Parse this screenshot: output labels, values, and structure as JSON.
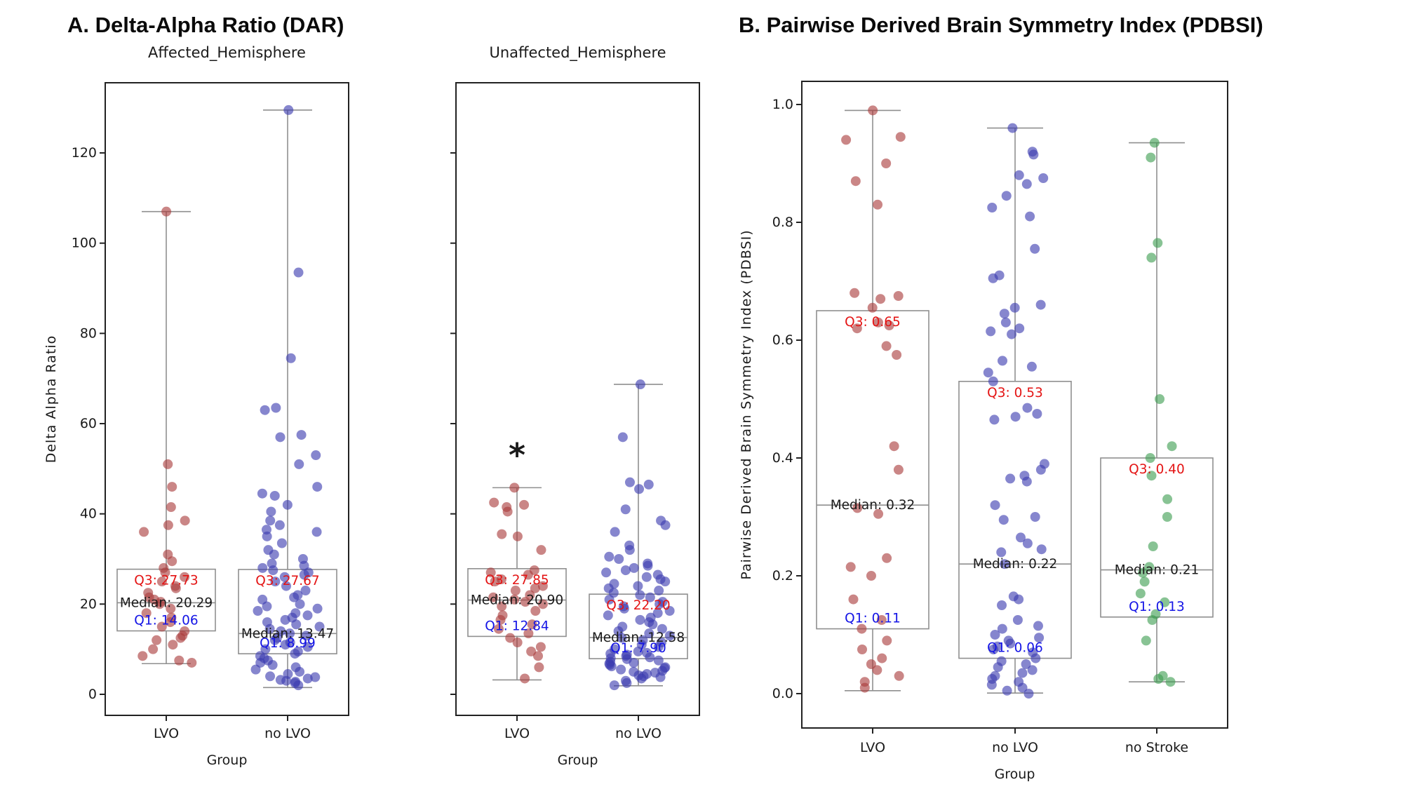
{
  "page": {
    "panel_a_title": "A. Delta-Alpha Ratio (DAR)",
    "panel_b_title": "B. Pairwise Derived Brain Symmetry Index (PDBSI)"
  },
  "colors": {
    "point_red": "#a93c3c",
    "point_blue": "#3b3bb0",
    "point_green": "#3f9e53",
    "box_stroke": "#8f8f8f",
    "annotation_q3": "#e41414",
    "annotation_median": "#1a1a1a",
    "annotation_q1": "#1414e6",
    "axis": "#222222"
  },
  "chart_data": [
    {
      "type": "box",
      "title": "Affected_Hemisphere",
      "xlabel": "Group",
      "ylabel": "Delta  Alpha Ratio",
      "ylim": [
        -4.7,
        135.5
      ],
      "yticks": [
        0,
        20,
        40,
        60,
        80,
        100,
        120
      ],
      "yticklabels": [
        "0",
        "20",
        "40",
        "60",
        "80",
        "100",
        "120"
      ],
      "show_ytick_labels": true,
      "categories": [
        "LVO",
        "no LVO"
      ],
      "groups": [
        {
          "name": "LVO",
          "color_key": "point_red",
          "box": {
            "q1": 14.06,
            "median": 20.29,
            "q3": 27.73,
            "whisker_low": 6.8,
            "whisker_high": 107.0
          },
          "labels": {
            "q3": "Q3: 27.73",
            "median": "Median: 20.29",
            "q1": "Q1: 14.06"
          },
          "points": [
            107,
            51,
            46,
            41.5,
            38.5,
            37.5,
            36,
            31,
            29.5,
            28,
            27,
            26,
            25,
            24,
            23.5,
            22.5,
            21.5,
            21,
            20.5,
            20,
            19,
            18,
            17,
            16,
            15,
            14,
            13,
            12.5,
            12,
            11,
            10,
            8.5,
            7.5,
            7
          ]
        },
        {
          "name": "no LVO",
          "color_key": "point_blue",
          "box": {
            "q1": 8.99,
            "median": 13.47,
            "q3": 27.67,
            "whisker_low": 1.5,
            "whisker_high": 129.5
          },
          "labels": {
            "q3": "Q3: 27.67",
            "median": "Median: 13.47",
            "q1": "Q1: 8.99"
          },
          "points": [
            129.5,
            93.5,
            74.5,
            63.5,
            63,
            57.5,
            57,
            53,
            51,
            46,
            44.5,
            44,
            42,
            40.5,
            38.5,
            37.5,
            36.5,
            36,
            35,
            33.5,
            32,
            31,
            30,
            29,
            28.5,
            28,
            27.5,
            27,
            26.5,
            26,
            25,
            24,
            23,
            22,
            21.5,
            21,
            20,
            19.5,
            19,
            18.5,
            18,
            17.5,
            17,
            16.5,
            16,
            15.5,
            15,
            14.5,
            14,
            13.5,
            13,
            12.5,
            12,
            11.5,
            11,
            10.5,
            10,
            9.5,
            9,
            8.5,
            8,
            7.5,
            7,
            6.5,
            6,
            5.5,
            5,
            4.5,
            4,
            3.8,
            3.5,
            3.2,
            3,
            2.8,
            2.5,
            2
          ]
        }
      ],
      "annotations": []
    },
    {
      "type": "box",
      "title": "Unaffected_Hemisphere",
      "xlabel": "Group",
      "ylabel": "",
      "ylim": [
        -4.7,
        135.5
      ],
      "yticks": [
        0,
        20,
        40,
        60,
        80,
        100,
        120
      ],
      "yticklabels": [
        "",
        "",
        "",
        "",
        "",
        "",
        ""
      ],
      "show_ytick_labels": false,
      "categories": [
        "LVO",
        "no LVO"
      ],
      "groups": [
        {
          "name": "LVO",
          "color_key": "point_red",
          "box": {
            "q1": 12.84,
            "median": 20.9,
            "q3": 27.85,
            "whisker_low": 3.2,
            "whisker_high": 45.8
          },
          "labels": {
            "q3": "Q3: 27.85",
            "median": "Median: 20.90",
            "q1": "Q1: 12.84"
          },
          "points": [
            45.8,
            42.5,
            42,
            41.5,
            40.5,
            35.5,
            35,
            32,
            27.5,
            27,
            26.5,
            25.5,
            25,
            24,
            23.5,
            23,
            22,
            21.5,
            21,
            20.5,
            20,
            19.5,
            18.5,
            17.5,
            16.5,
            15.5,
            14.5,
            13.5,
            12.5,
            11.5,
            10.5,
            9.5,
            8.5,
            6,
            3.5
          ]
        },
        {
          "name": "no LVO",
          "color_key": "point_blue",
          "box": {
            "q1": 7.9,
            "median": 12.58,
            "q3": 22.2,
            "whisker_low": 1.9,
            "whisker_high": 68.7
          },
          "labels": {
            "q3": "Q3: 22.20",
            "median": "Median: 12.58",
            "q1": "Q1: 7.90"
          },
          "points": [
            68.7,
            57,
            47,
            46.5,
            45.5,
            41,
            38.5,
            37.5,
            36,
            33,
            32,
            30.5,
            30,
            29,
            28.5,
            28,
            27.5,
            27,
            26.5,
            26,
            25.5,
            25,
            24.5,
            24,
            23.5,
            23,
            22.5,
            22,
            21.5,
            21,
            20.5,
            20,
            19.5,
            19,
            18.5,
            18,
            17.5,
            17,
            16.5,
            16,
            15.5,
            15,
            14.5,
            14,
            13.5,
            13,
            12.5,
            12,
            11.5,
            11,
            10.5,
            10,
            9.5,
            9.2,
            9,
            8.8,
            8.5,
            8.2,
            8,
            7.8,
            7.5,
            7.2,
            7,
            6.8,
            6.5,
            6.2,
            6,
            5.8,
            5.5,
            5.2,
            5,
            4.8,
            4.5,
            4.2,
            4,
            3.8,
            3.5,
            3,
            2.5,
            2
          ]
        }
      ],
      "annotations": [
        {
          "text": "*",
          "category": "LVO",
          "value": 50.5,
          "fontsize": 46
        }
      ]
    },
    {
      "type": "box",
      "title": "",
      "xlabel": "Group",
      "ylabel": "Pairwise Derived Brain Symmetry Index (PDBSI)",
      "ylim": [
        -0.058,
        1.039
      ],
      "yticks": [
        0.0,
        0.2,
        0.4,
        0.6,
        0.8,
        1.0
      ],
      "yticklabels": [
        "0.0",
        "0.2",
        "0.4",
        "0.6",
        "0.8",
        "1.0"
      ],
      "show_ytick_labels": true,
      "categories": [
        "LVO",
        "no LVO",
        "no Stroke"
      ],
      "groups": [
        {
          "name": "LVO",
          "color_key": "point_red",
          "box": {
            "q1": 0.11,
            "median": 0.32,
            "q3": 0.65,
            "whisker_low": 0.005,
            "whisker_high": 0.99
          },
          "labels": {
            "q3": "Q3: 0.65",
            "median": "Median: 0.32",
            "q1": "Q1: 0.11"
          },
          "points": [
            0.99,
            0.945,
            0.94,
            0.9,
            0.87,
            0.83,
            0.68,
            0.675,
            0.67,
            0.655,
            0.63,
            0.625,
            0.62,
            0.59,
            0.575,
            0.42,
            0.38,
            0.315,
            0.305,
            0.23,
            0.215,
            0.2,
            0.16,
            0.125,
            0.11,
            0.09,
            0.075,
            0.06,
            0.05,
            0.04,
            0.03,
            0.02,
            0.01
          ]
        },
        {
          "name": "no LVO",
          "color_key": "point_blue",
          "box": {
            "q1": 0.06,
            "median": 0.22,
            "q3": 0.53,
            "whisker_low": 0.001,
            "whisker_high": 0.96
          },
          "labels": {
            "q3": "Q3: 0.53",
            "median": "Median: 0.22",
            "q1": "Q1: 0.06"
          },
          "points": [
            0.96,
            0.92,
            0.915,
            0.88,
            0.875,
            0.865,
            0.845,
            0.825,
            0.81,
            0.755,
            0.71,
            0.705,
            0.66,
            0.655,
            0.645,
            0.63,
            0.62,
            0.615,
            0.61,
            0.565,
            0.555,
            0.545,
            0.53,
            0.485,
            0.475,
            0.47,
            0.465,
            0.39,
            0.38,
            0.37,
            0.365,
            0.36,
            0.32,
            0.3,
            0.295,
            0.265,
            0.255,
            0.245,
            0.24,
            0.22,
            0.165,
            0.16,
            0.15,
            0.125,
            0.115,
            0.11,
            0.1,
            0.095,
            0.09,
            0.085,
            0.08,
            0.075,
            0.07,
            0.06,
            0.055,
            0.05,
            0.045,
            0.04,
            0.035,
            0.03,
            0.025,
            0.02,
            0.015,
            0.01,
            0.005,
            0.0
          ]
        },
        {
          "name": "no Stroke",
          "color_key": "point_green",
          "box": {
            "q1": 0.13,
            "median": 0.21,
            "q3": 0.4,
            "whisker_low": 0.02,
            "whisker_high": 0.935
          },
          "labels": {
            "q3": "Q3: 0.40",
            "median": "Median: 0.21",
            "q1": "Q1: 0.13"
          },
          "points": [
            0.935,
            0.91,
            0.765,
            0.74,
            0.5,
            0.42,
            0.4,
            0.37,
            0.33,
            0.3,
            0.25,
            0.215,
            0.205,
            0.19,
            0.17,
            0.155,
            0.135,
            0.125,
            0.09,
            0.03,
            0.025,
            0.02
          ]
        }
      ],
      "annotations": []
    }
  ]
}
